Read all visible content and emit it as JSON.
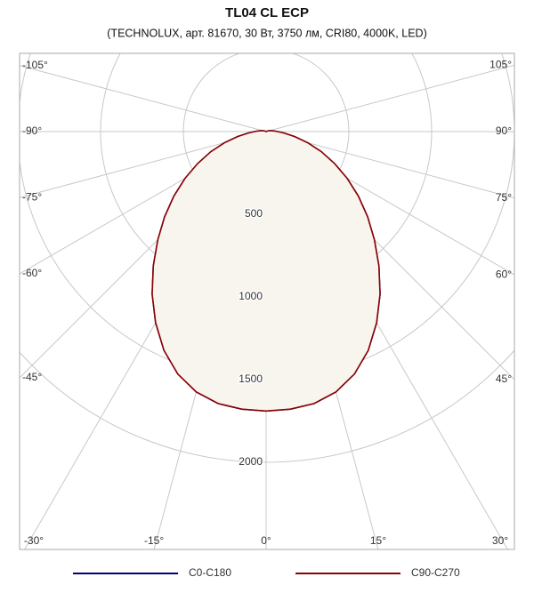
{
  "chart_data": {
    "type": "polar",
    "title": "TL04 CL ECP",
    "subtitle": "(TECHNOLUX, арт. 81670, 30 Вт, 3750 лм, CRI80, 4000K, LED)",
    "x": [
      -120,
      -115,
      -110,
      -105,
      -100,
      -95,
      -90,
      -85,
      -80,
      -75,
      -70,
      -65,
      -60,
      -55,
      -50,
      -45,
      -40,
      -35,
      -30,
      -25,
      -20,
      -15,
      -10,
      -5,
      0,
      5,
      10,
      15,
      20,
      25,
      30,
      35,
      40,
      45,
      50,
      55,
      60,
      65,
      70,
      75,
      80,
      85,
      90,
      95,
      100,
      105,
      110,
      115,
      120
    ],
    "series": [
      {
        "name": "C0-C180",
        "color": "#000080",
        "values": [
          0,
          5,
          10,
          20,
          30,
          45,
          70,
          110,
          175,
          260,
          355,
          455,
          565,
          680,
          800,
          925,
          1060,
          1200,
          1335,
          1460,
          1560,
          1630,
          1670,
          1685,
          1690,
          1685,
          1670,
          1630,
          1560,
          1460,
          1335,
          1200,
          1060,
          925,
          800,
          680,
          565,
          455,
          355,
          260,
          175,
          110,
          70,
          45,
          30,
          20,
          10,
          5,
          0
        ]
      },
      {
        "name": "C90-C270",
        "color": "#8b0000",
        "values": [
          0,
          5,
          10,
          20,
          30,
          45,
          70,
          110,
          175,
          260,
          355,
          455,
          565,
          680,
          800,
          925,
          1060,
          1200,
          1335,
          1460,
          1560,
          1630,
          1670,
          1685,
          1690,
          1685,
          1670,
          1630,
          1560,
          1460,
          1335,
          1200,
          1060,
          925,
          800,
          680,
          565,
          455,
          355,
          260,
          175,
          110,
          70,
          45,
          30,
          20,
          10,
          5,
          0
        ]
      }
    ],
    "fill": "#f8f4ee",
    "rlim": [
      0,
      2527
    ],
    "rticks": [
      500,
      1000,
      1500,
      2000
    ],
    "xticks": [
      {
        "value": -105,
        "label": "-105°"
      },
      {
        "value": -90,
        "label": "-90°"
      },
      {
        "value": -75,
        "label": "-75°"
      },
      {
        "value": -60,
        "label": "-60°"
      },
      {
        "value": -45,
        "label": "-45°"
      },
      {
        "value": -30,
        "label": "-30°"
      },
      {
        "value": -15,
        "label": "-15°"
      },
      {
        "value": 0,
        "label": "0°"
      },
      {
        "value": 15,
        "label": "15°"
      },
      {
        "value": 30,
        "label": "30°"
      },
      {
        "value": 45,
        "label": "45°"
      },
      {
        "value": 60,
        "label": "60°"
      },
      {
        "value": 75,
        "label": "75°"
      },
      {
        "value": 90,
        "label": "90°"
      },
      {
        "value": 105,
        "label": "105°"
      }
    ]
  }
}
